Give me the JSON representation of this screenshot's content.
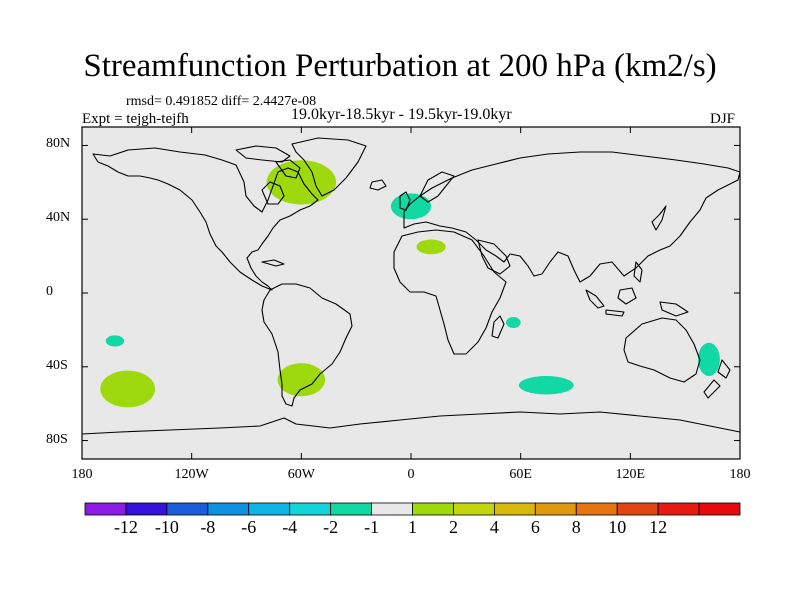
{
  "title": "Streamfunction Perturbation at 200 hPa (km2/s)",
  "stats": "rmsd= 0.491852 diff= 2.4427e-08",
  "experiment": "Expt = tejgh-tejfh",
  "period": "19.0kyr-18.5kyr - 19.5kyr-19.0kyr",
  "season": "DJF",
  "colors": {
    "background": "#e8e8e8",
    "positive_1_2": "#9ed90e",
    "negative_2_1": "#12d9a3"
  },
  "chart_data": {
    "type": "map",
    "projection": "cylindrical-equidistant",
    "xlim": [
      -180,
      180
    ],
    "ylim": [
      -90,
      90
    ],
    "lon_ticks": [
      {
        "value": -180,
        "label": "180"
      },
      {
        "value": -120,
        "label": "120W"
      },
      {
        "value": -60,
        "label": "60W"
      },
      {
        "value": 0,
        "label": "0"
      },
      {
        "value": 60,
        "label": "60E"
      },
      {
        "value": 120,
        "label": "120E"
      },
      {
        "value": 180,
        "label": "180"
      }
    ],
    "lat_ticks": [
      {
        "value": 80,
        "label": "80N"
      },
      {
        "value": 40,
        "label": "40N"
      },
      {
        "value": 0,
        "label": "0"
      },
      {
        "value": -40,
        "label": "40S"
      },
      {
        "value": -80,
        "label": "80S"
      }
    ],
    "anomalies": [
      {
        "region": "Eastern Canada / North Atlantic",
        "lon": -60,
        "lat": 60,
        "rlon": 19,
        "rlat": 12,
        "class": "1 to 2"
      },
      {
        "region": "Europe",
        "lon": 0,
        "lat": 47,
        "rlon": 11,
        "rlat": 7,
        "class": "-2 to -1"
      },
      {
        "region": "North Africa",
        "lon": 11,
        "lat": 25,
        "rlon": 8,
        "rlat": 4,
        "class": "1 to 2"
      },
      {
        "region": "Madagascar channel",
        "lon": 56,
        "lat": -16,
        "rlon": 4,
        "rlat": 3,
        "class": "-2 to -1"
      },
      {
        "region": "South Indian Ocean",
        "lon": 74,
        "lat": -50,
        "rlon": 15,
        "rlat": 5,
        "class": "-2 to -1"
      },
      {
        "region": "Tasman Sea",
        "lon": 163,
        "lat": -36,
        "rlon": 6,
        "rlat": 9,
        "class": "-2 to -1"
      },
      {
        "region": "South Pacific (north)",
        "lon": -162,
        "lat": -26,
        "rlon": 5,
        "rlat": 3,
        "class": "-2 to -1"
      },
      {
        "region": "South Pacific (south)",
        "lon": -155,
        "lat": -52,
        "rlon": 15,
        "rlat": 10,
        "class": "1 to 2"
      },
      {
        "region": "Southern South America",
        "lon": -60,
        "lat": -47,
        "rlon": 13,
        "rlat": 9,
        "class": "1 to 2"
      }
    ],
    "colorbar": {
      "colors": [
        "#8d1be6",
        "#3512d9",
        "#1a5fd9",
        "#0f8fe0",
        "#11b4e6",
        "#12d4d9",
        "#12d9a3",
        "#e8e8e8",
        "#9ed90e",
        "#c4d40d",
        "#d9b80d",
        "#e0990f",
        "#e6740f",
        "#e04512",
        "#e61a10",
        "#e60a0a"
      ],
      "labels": [
        "-12",
        "-10",
        "-8",
        "-6",
        "-4",
        "-2",
        "-1",
        "1",
        "2",
        "4",
        "6",
        "8",
        "10",
        "12"
      ]
    }
  }
}
